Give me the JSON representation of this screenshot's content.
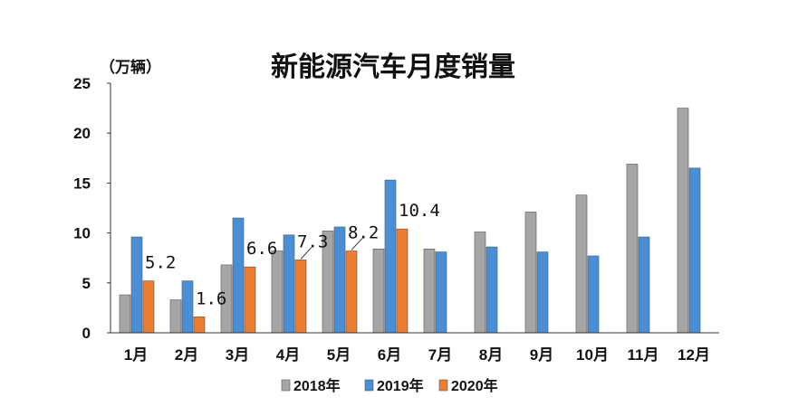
{
  "chart_data": {
    "type": "bar",
    "title": "新能源汽车月度销量",
    "ylabel": "（万辆）",
    "xlabel": "",
    "ylim": [
      0,
      25
    ],
    "yticks": [
      0,
      5,
      10,
      15,
      20,
      25
    ],
    "grid": false,
    "legend_position": "bottom",
    "categories": [
      "1月",
      "2月",
      "3月",
      "4月",
      "5月",
      "6月",
      "7月",
      "8月",
      "9月",
      "10月",
      "11月",
      "12月"
    ],
    "series": [
      {
        "name": "2018年",
        "color": "#a6a6a6",
        "values": [
          3.8,
          3.3,
          6.8,
          8.2,
          10.2,
          8.4,
          8.4,
          10.1,
          12.1,
          13.8,
          16.9,
          22.5
        ]
      },
      {
        "name": "2019年",
        "color": "#4a8fd6",
        "values": [
          9.6,
          5.2,
          11.5,
          9.8,
          10.6,
          15.3,
          8.1,
          8.6,
          8.1,
          7.7,
          9.6,
          16.5
        ]
      },
      {
        "name": "2020年",
        "color": "#ed7d31",
        "values": [
          5.2,
          1.6,
          6.6,
          7.3,
          8.2,
          10.4,
          null,
          null,
          null,
          null,
          null,
          null
        ]
      }
    ],
    "data_labels": [
      "5.2",
      "1.6",
      "6.6",
      "7.3",
      "8.2",
      "10.4"
    ]
  }
}
